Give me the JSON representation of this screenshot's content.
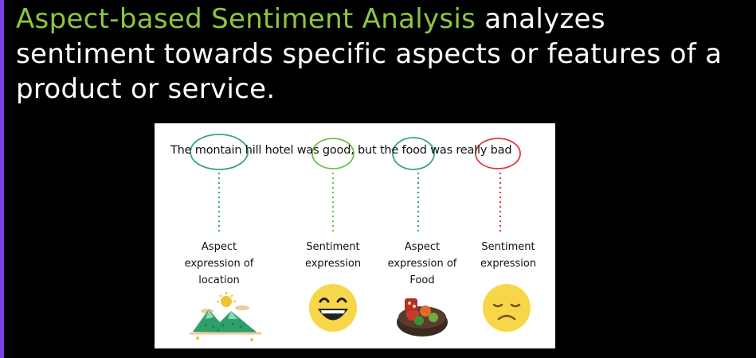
{
  "headline": {
    "accent": "Aspect-based Sentiment Analysis",
    "rest": " analyzes sentiment towards specific aspects or features of a product or service."
  },
  "diagram": {
    "sentence": {
      "part1": "The ",
      "aspect_location": "montain",
      "part2": " hill hotel was ",
      "sentiment_positive": "good",
      "part3": ", but the ",
      "aspect_food": "food",
      "part4": " was really ",
      "sentiment_negative": "bad"
    },
    "columns": [
      {
        "label_lines": [
          "Aspect",
          "expression of",
          "location"
        ],
        "icon": "mountain-sun-icon",
        "line_color": "#3aa676"
      },
      {
        "label_lines": [
          "Sentiment",
          "expression"
        ],
        "icon": "laughing-face-icon",
        "line_color": "#6abf4b"
      },
      {
        "label_lines": [
          "Aspect",
          "expression of",
          "Food"
        ],
        "icon": "food-bowl-icon",
        "line_color": "#3aa676"
      },
      {
        "label_lines": [
          "Sentiment",
          "expression"
        ],
        "icon": "sad-face-icon",
        "line_color": "#d9393b"
      }
    ],
    "colors": {
      "aspect_circle": "#3aa676",
      "positive_circle": "#6abf4b",
      "negative_circle": "#d9393b",
      "emoji_yellow": "#f7d64a"
    }
  }
}
